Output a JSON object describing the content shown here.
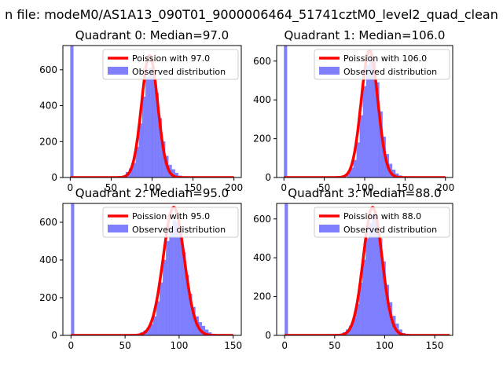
{
  "figure": {
    "suptitle": "n file: modeM0/AS1A13_090T01_9000006464_51741cztM0_level2_quad_clean"
  },
  "colors": {
    "poisson": "#ff0000",
    "observed": "#8080ff",
    "observed_edge": "#6f6fff"
  },
  "chart_data": [
    {
      "type": "bar",
      "title": "Quadrant 0: Median=97.0",
      "median": 97.0,
      "xlim": [
        -9,
        209
      ],
      "ylim": [
        0,
        735
      ],
      "xticks": [
        0,
        50,
        100,
        150,
        200
      ],
      "yticks": [
        0,
        200,
        400,
        600
      ],
      "bin_width": 4,
      "zero_bin_height": 740,
      "curve_peak": 680,
      "legend": {
        "position": "upper right",
        "entries": [
          "Poission with 97.0",
          "Observed distribution"
        ]
      },
      "observed": {
        "name": "Observed distribution",
        "x": [
          68,
          72,
          76,
          80,
          84,
          88,
          92,
          96,
          100,
          104,
          108,
          112,
          116,
          120,
          124,
          128,
          132
        ],
        "y": [
          30,
          50,
          80,
          170,
          300,
          450,
          560,
          610,
          590,
          470,
          330,
          200,
          120,
          70,
          45,
          25,
          10
        ]
      },
      "poisson": {
        "name": "Poission with 97.0",
        "x_range": [
          0,
          200
        ]
      }
    },
    {
      "type": "bar",
      "title": "Quadrant 1: Median=106.0",
      "median": 106.0,
      "xlim": [
        -9,
        209
      ],
      "ylim": [
        0,
        680
      ],
      "xticks": [
        0,
        50,
        100,
        150,
        200
      ],
      "yticks": [
        0,
        200,
        400,
        600
      ],
      "bin_width": 4,
      "zero_bin_height": 690,
      "curve_peak": 655,
      "legend": {
        "position": "upper right",
        "entries": [
          "Poission with 106.0",
          "Observed distribution"
        ]
      },
      "observed": {
        "name": "Observed distribution",
        "x": [
          78,
          82,
          86,
          90,
          94,
          98,
          102,
          106,
          110,
          114,
          118,
          122,
          126,
          130,
          134,
          138,
          142
        ],
        "y": [
          25,
          50,
          90,
          180,
          320,
          470,
          580,
          620,
          600,
          490,
          340,
          210,
          120,
          70,
          40,
          20,
          10
        ]
      },
      "poisson": {
        "name": "Poission with 106.0",
        "x_range": [
          0,
          200
        ]
      }
    },
    {
      "type": "bar",
      "title": "Quadrant 2: Median=95.0",
      "median": 95.0,
      "xlim": [
        -7.5,
        157.5
      ],
      "ylim": [
        0,
        700
      ],
      "xticks": [
        0,
        50,
        100,
        150
      ],
      "yticks": [
        0,
        200,
        400,
        600
      ],
      "bin_width": 3,
      "zero_bin_height": 700,
      "curve_peak": 680,
      "legend": {
        "position": "upper right",
        "entries": [
          "Poission with 95.0",
          "Observed distribution"
        ]
      },
      "observed": {
        "name": "Observed distribution",
        "x": [
          64,
          67,
          70,
          73,
          76,
          79,
          82,
          85,
          88,
          91,
          94,
          97,
          100,
          103,
          106,
          109,
          112,
          115,
          118,
          121,
          124,
          127,
          130
        ],
        "y": [
          15,
          25,
          40,
          60,
          100,
          180,
          280,
          400,
          500,
          580,
          610,
          600,
          540,
          440,
          320,
          220,
          150,
          100,
          70,
          50,
          30,
          15,
          8
        ]
      },
      "poisson": {
        "name": "Poission with 95.0",
        "x_range": [
          0,
          150
        ]
      }
    },
    {
      "type": "bar",
      "title": "Quadrant 3: Median=88.0",
      "median": 88.0,
      "xlim": [
        -8,
        168
      ],
      "ylim": [
        0,
        680
      ],
      "xticks": [
        0,
        50,
        100,
        150
      ],
      "yticks": [
        0,
        200,
        400,
        600
      ],
      "bin_width": 3.3,
      "zero_bin_height": 690,
      "curve_peak": 660,
      "legend": {
        "position": "upper right",
        "entries": [
          "Poission with 88.0",
          "Observed distribution"
        ]
      },
      "observed": {
        "name": "Observed distribution",
        "x": [
          58,
          61.3,
          64.6,
          67.9,
          71.2,
          74.5,
          77.8,
          81.1,
          84.4,
          87.7,
          91,
          94.3,
          97.6,
          100.9,
          104.2,
          107.5,
          110.8,
          114.1,
          117.4
        ],
        "y": [
          15,
          30,
          50,
          90,
          160,
          270,
          390,
          500,
          580,
          620,
          590,
          500,
          380,
          260,
          170,
          100,
          60,
          30,
          12
        ]
      },
      "poisson": {
        "name": "Poission with 88.0",
        "x_range": [
          0,
          165
        ]
      }
    }
  ]
}
